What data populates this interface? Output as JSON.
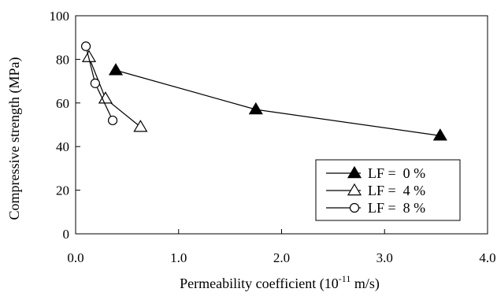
{
  "chart_data": {
    "type": "line",
    "title": "",
    "xlabel": "Permeability coefficient (10",
    "xlabel_superscript": "-11",
    "xlabel_suffix": " m/s)",
    "ylabel": "Compressive strength (MPa)",
    "xlim": [
      0.0,
      4.0
    ],
    "ylim": [
      0,
      100
    ],
    "x_ticks": [
      "0.0",
      "1.0",
      "2.0",
      "3.0",
      "4.0"
    ],
    "y_ticks": [
      "0",
      "20",
      "40",
      "60",
      "80",
      "100"
    ],
    "grid": false,
    "legend_position": "bottom-right",
    "series": [
      {
        "name": "LF =  0 %",
        "marker": "filled-triangle",
        "points": [
          {
            "x": 0.39,
            "y": 75
          },
          {
            "x": 1.75,
            "y": 57
          },
          {
            "x": 3.54,
            "y": 45
          }
        ]
      },
      {
        "name": "LF =  4 %",
        "marker": "open-triangle",
        "points": [
          {
            "x": 0.13,
            "y": 81
          },
          {
            "x": 0.29,
            "y": 62
          },
          {
            "x": 0.63,
            "y": 49
          }
        ]
      },
      {
        "name": "LF =  8 %",
        "marker": "open-circle",
        "points": [
          {
            "x": 0.1,
            "y": 86
          },
          {
            "x": 0.19,
            "y": 69
          },
          {
            "x": 0.36,
            "y": 52
          }
        ]
      }
    ]
  }
}
